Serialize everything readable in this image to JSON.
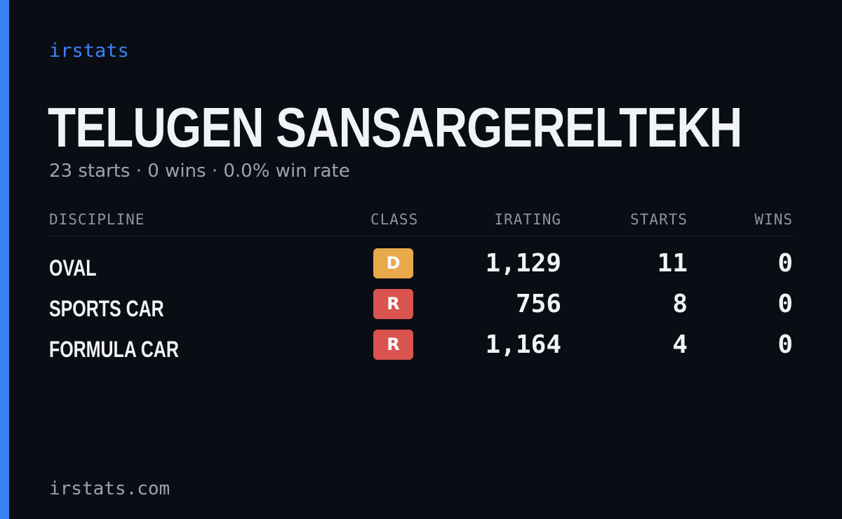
{
  "brand": "irstats",
  "driver_name": "TELUGEN SANSARGERELTEKH",
  "summary": "23 starts · 0 wins · 0.0% win rate",
  "colors": {
    "accent": "#3b82f6",
    "background": "#0a0d14",
    "class_d": "#e8a94a",
    "class_r": "#d9534f"
  },
  "table": {
    "headers": {
      "discipline": "DISCIPLINE",
      "class": "CLASS",
      "irating": "IRATING",
      "starts": "STARTS",
      "wins": "WINS"
    },
    "rows": [
      {
        "discipline": "OVAL",
        "class": "D",
        "class_color": "#e8a94a",
        "irating": "1,129",
        "starts": "11",
        "wins": "0"
      },
      {
        "discipline": "SPORTS CAR",
        "class": "R",
        "class_color": "#d9534f",
        "irating": "756",
        "starts": "8",
        "wins": "0"
      },
      {
        "discipline": "FORMULA CAR",
        "class": "R",
        "class_color": "#d9534f",
        "irating": "1,164",
        "starts": "4",
        "wins": "0"
      }
    ]
  },
  "footer": "irstats.com"
}
